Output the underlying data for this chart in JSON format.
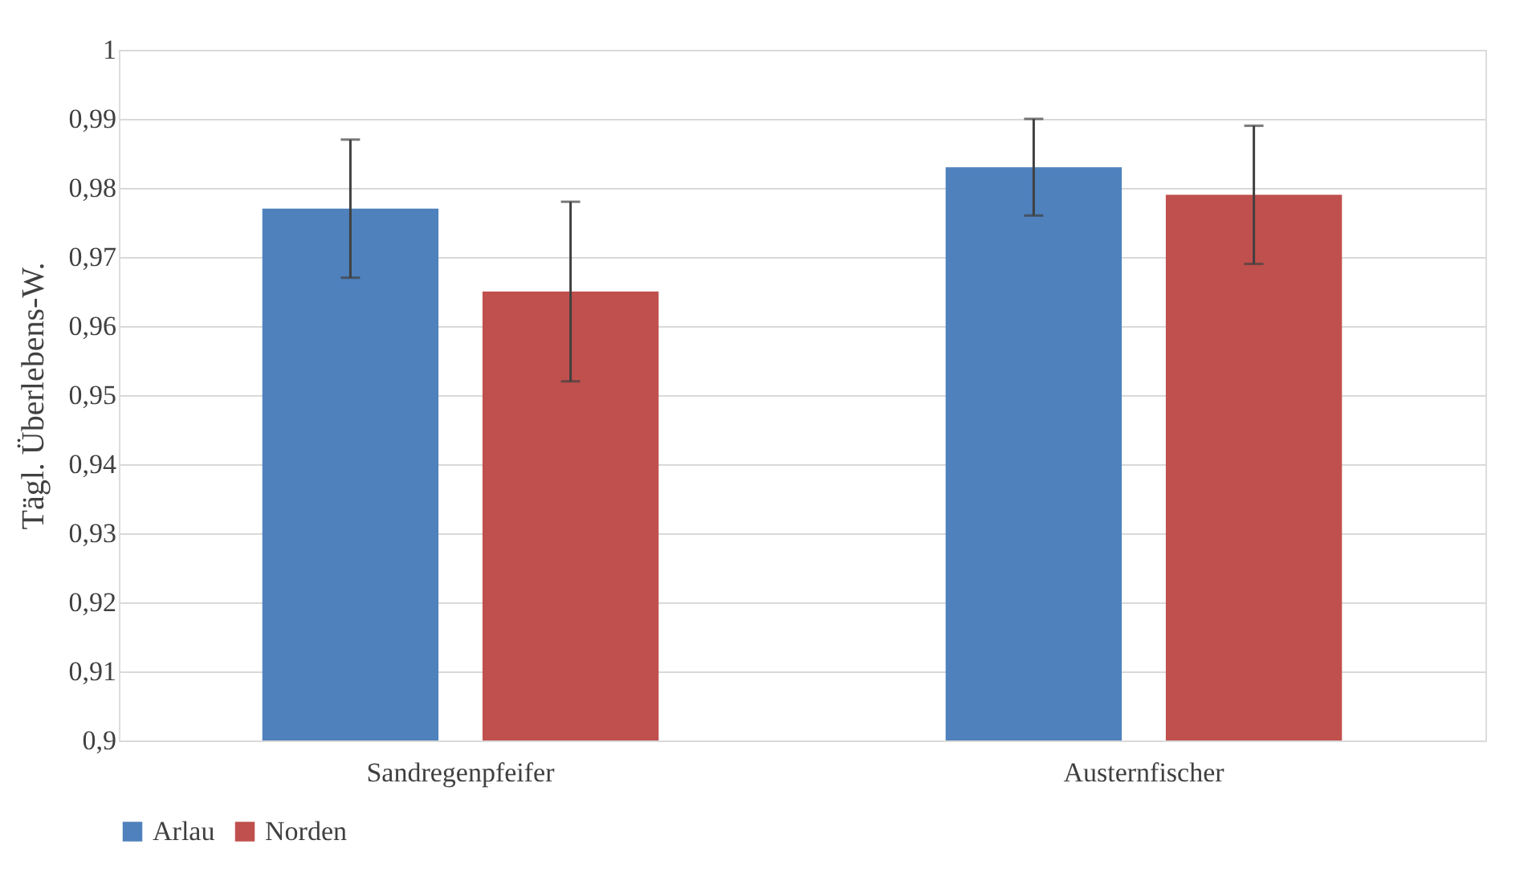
{
  "chart_data": {
    "type": "bar",
    "ylabel": "Tägl. Überlebens-W.",
    "categories": [
      "Sandregenpfeifer",
      "Austernfischer"
    ],
    "series": [
      {
        "name": "Arlau",
        "color": "#4f81bd",
        "values": [
          0.977,
          0.983
        ],
        "errors": [
          0.01,
          0.007
        ]
      },
      {
        "name": "Norden",
        "color": "#c0504d",
        "values": [
          0.965,
          0.979
        ],
        "errors": [
          0.013,
          0.01
        ]
      }
    ],
    "ylim": [
      0.9,
      1.0
    ],
    "yticks": [
      {
        "value": 0.9,
        "label": "0,9"
      },
      {
        "value": 0.91,
        "label": "0,91"
      },
      {
        "value": 0.92,
        "label": "0,92"
      },
      {
        "value": 0.93,
        "label": "0,93"
      },
      {
        "value": 0.94,
        "label": "0,94"
      },
      {
        "value": 0.95,
        "label": "0,95"
      },
      {
        "value": 0.96,
        "label": "0,96"
      },
      {
        "value": 0.97,
        "label": "0,97"
      },
      {
        "value": 0.98,
        "label": "0,98"
      },
      {
        "value": 0.99,
        "label": "0,99"
      },
      {
        "value": 1,
        "label": "1"
      }
    ],
    "grid": "y",
    "legend": "bottom"
  }
}
